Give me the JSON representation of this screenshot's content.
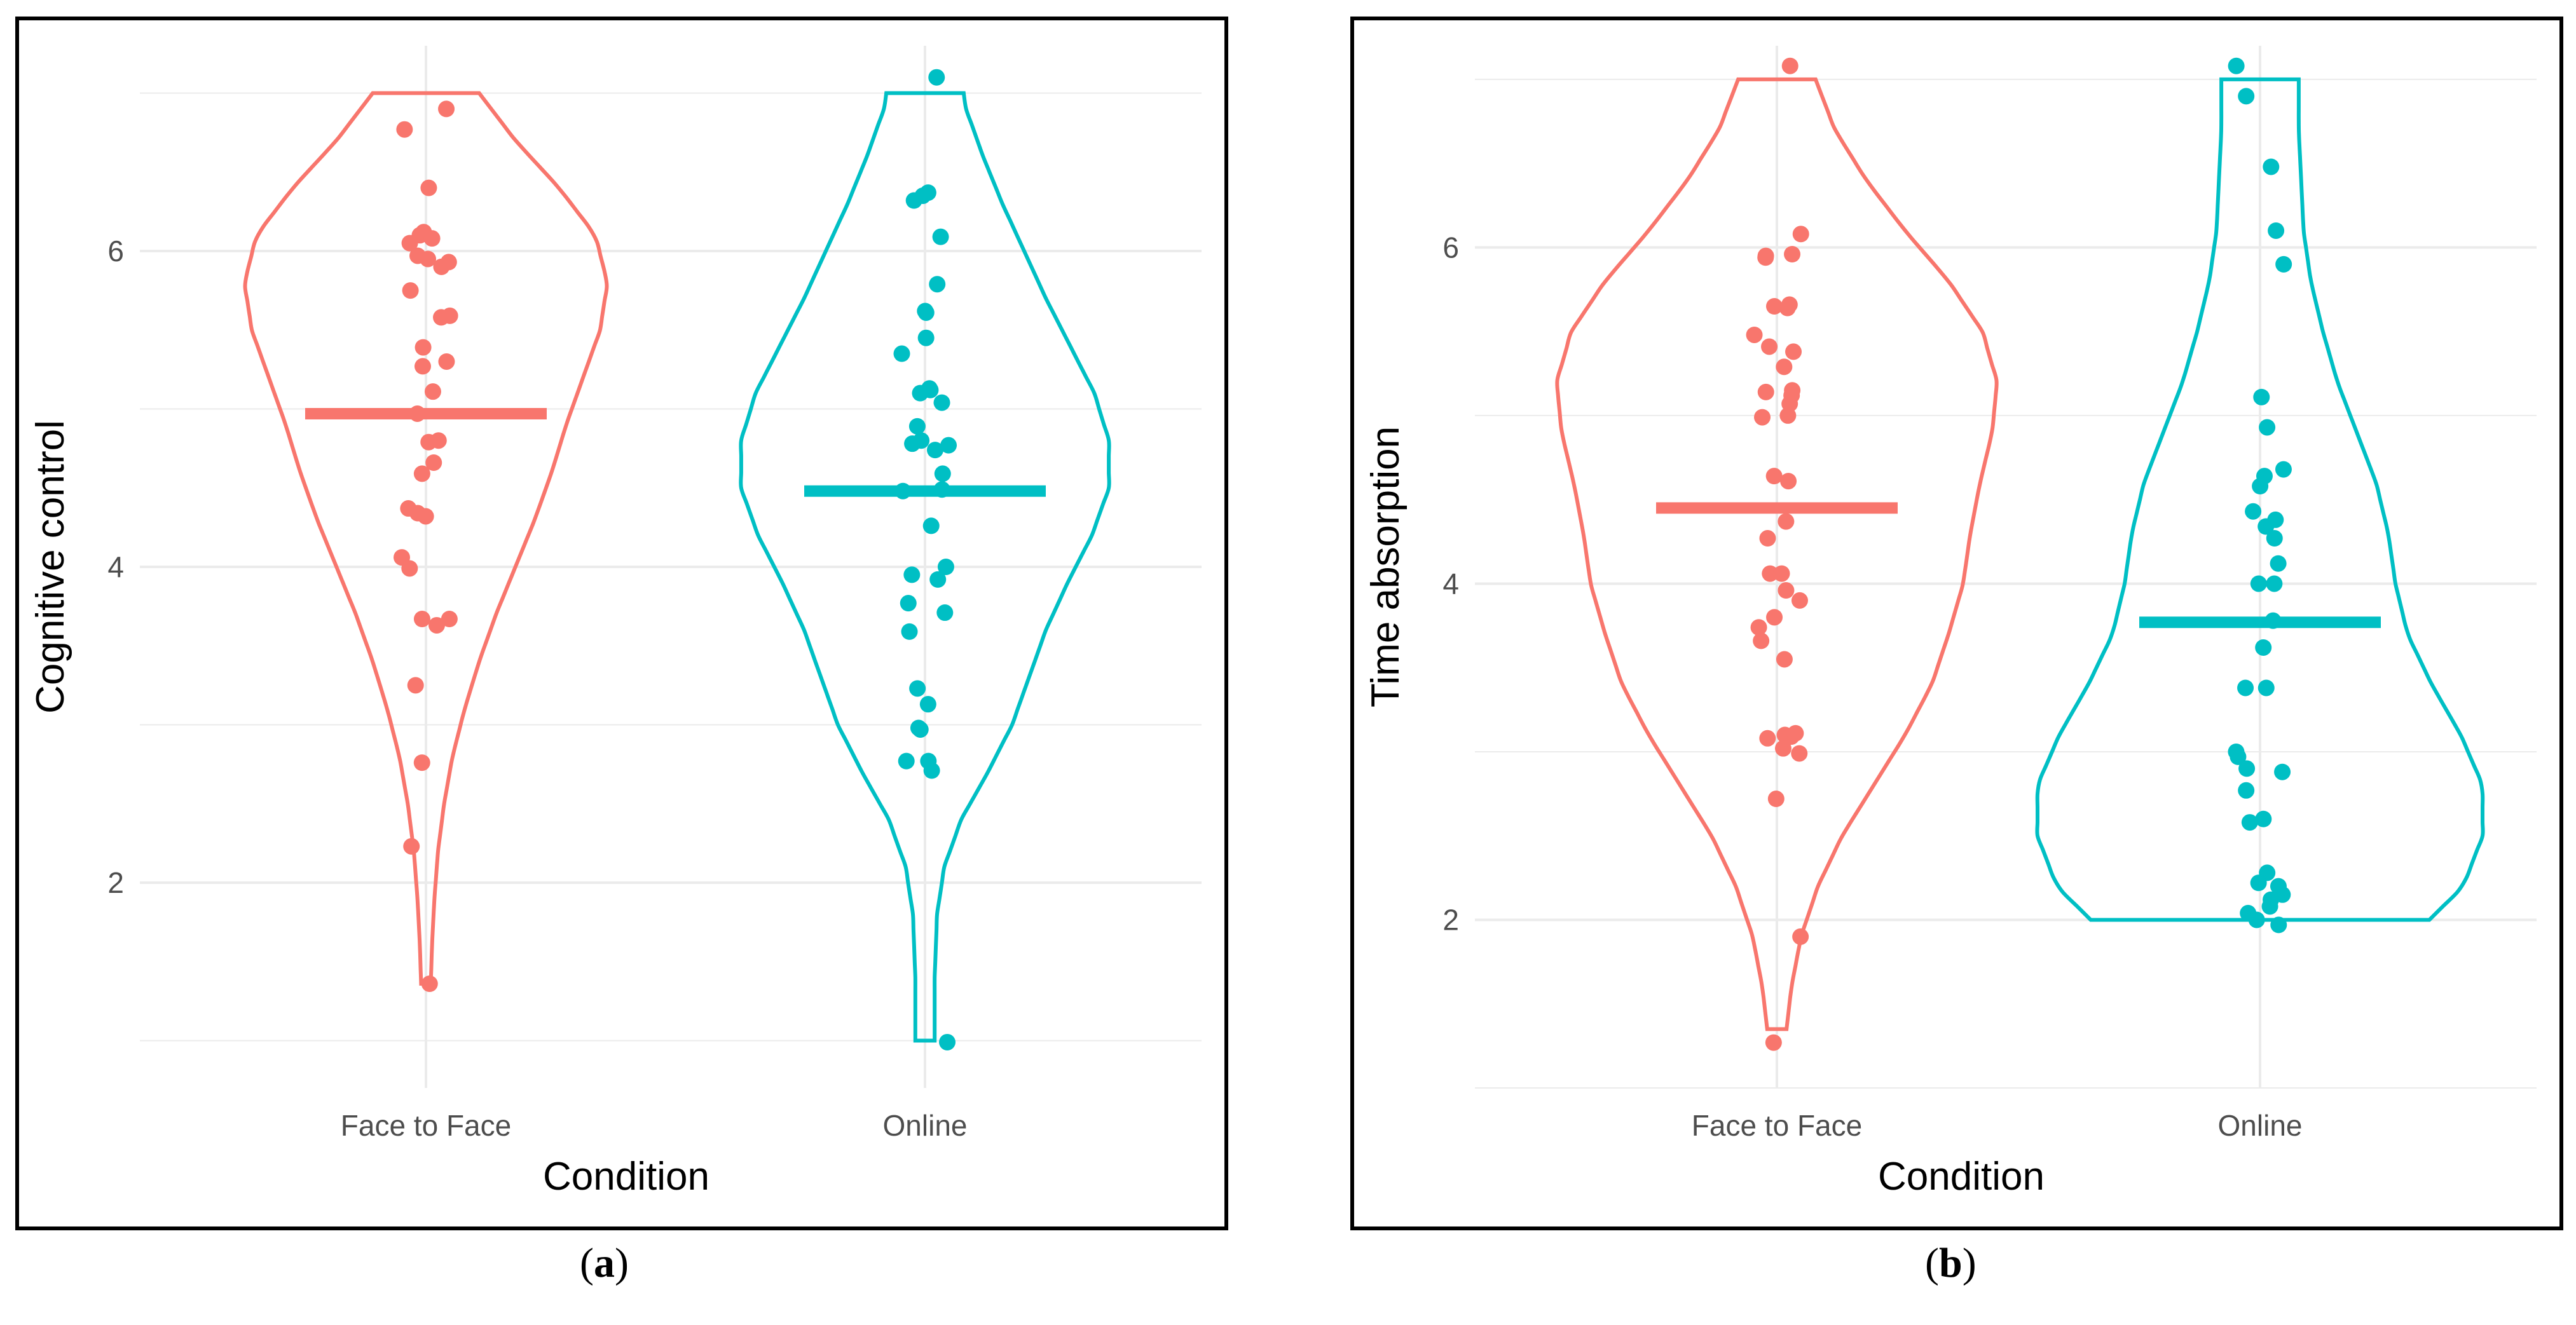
{
  "colors": {
    "face_to_face": "#F8766D",
    "online": "#00BFC4",
    "grid": "#EBEBEB"
  },
  "chart_data": [
    {
      "panel": "a",
      "type": "violin",
      "title": "",
      "xlabel": "Condition",
      "ylabel": "Cognitive control",
      "categories": [
        "Face to Face",
        "Online"
      ],
      "ylim": [
        0.7,
        7.3
      ],
      "yticks": [
        2,
        4,
        6
      ],
      "grid": true,
      "series": [
        {
          "name": "Face to Face",
          "mean": 4.97,
          "min": 1.36,
          "max": 7.0,
          "density": [
            [
              1.36,
              0.02
            ],
            [
              1.6,
              0.025
            ],
            [
              1.9,
              0.035
            ],
            [
              2.2,
              0.05
            ],
            [
              2.5,
              0.075
            ],
            [
              2.8,
              0.11
            ],
            [
              3.1,
              0.16
            ],
            [
              3.4,
              0.22
            ],
            [
              3.7,
              0.29
            ],
            [
              4.0,
              0.37
            ],
            [
              4.3,
              0.45
            ],
            [
              4.6,
              0.52
            ],
            [
              4.9,
              0.58
            ],
            [
              5.2,
              0.65
            ],
            [
              5.5,
              0.72
            ],
            [
              5.8,
              0.75
            ],
            [
              6.1,
              0.7
            ],
            [
              6.4,
              0.55
            ],
            [
              6.7,
              0.37
            ],
            [
              7.0,
              0.22
            ]
          ],
          "points": [
            6.9,
            6.77,
            6.4,
            6.1,
            6.12,
            6.08,
            6.05,
            5.97,
            5.95,
            5.93,
            5.9,
            5.75,
            5.59,
            5.58,
            5.39,
            5.3,
            5.27,
            5.11,
            4.97,
            4.8,
            4.79,
            4.66,
            4.59,
            4.37,
            4.34,
            4.32,
            4.06,
            3.99,
            3.67,
            3.67,
            3.63,
            3.25,
            2.76,
            2.23,
            1.36
          ]
        },
        {
          "name": "Online",
          "mean": 4.48,
          "min": 1.0,
          "max": 7.0,
          "density": [
            [
              1.0,
              0.04
            ],
            [
              1.4,
              0.04
            ],
            [
              1.8,
              0.05
            ],
            [
              2.1,
              0.08
            ],
            [
              2.4,
              0.15
            ],
            [
              2.7,
              0.26
            ],
            [
              3.0,
              0.36
            ],
            [
              3.3,
              0.43
            ],
            [
              3.6,
              0.5
            ],
            [
              3.9,
              0.59
            ],
            [
              4.2,
              0.69
            ],
            [
              4.5,
              0.76
            ],
            [
              4.8,
              0.76
            ],
            [
              5.1,
              0.7
            ],
            [
              5.4,
              0.6
            ],
            [
              5.7,
              0.5
            ],
            [
              6.0,
              0.41
            ],
            [
              6.3,
              0.32
            ],
            [
              6.6,
              0.24
            ],
            [
              6.9,
              0.17
            ],
            [
              7.0,
              0.16
            ]
          ],
          "points": [
            7.1,
            6.37,
            6.35,
            6.32,
            6.09,
            5.79,
            5.62,
            5.61,
            5.45,
            5.35,
            5.13,
            5.12,
            5.1,
            5.04,
            4.89,
            4.8,
            4.78,
            4.77,
            4.74,
            4.59,
            4.49,
            4.48,
            4.26,
            4.0,
            3.95,
            3.92,
            3.77,
            3.71,
            3.59,
            3.23,
            3.13,
            2.98,
            2.97,
            2.77,
            2.77,
            2.71,
            0.99
          ]
        }
      ]
    },
    {
      "panel": "b",
      "type": "violin",
      "title": "",
      "xlabel": "Condition",
      "ylabel": "Time absorption",
      "categories": [
        "Face to Face",
        "Online"
      ],
      "ylim": [
        1.0,
        7.2
      ],
      "yticks": [
        2,
        4,
        6
      ],
      "grid": true,
      "series": [
        {
          "name": "Face to Face",
          "mean": 4.45,
          "min": 1.35,
          "max": 7.0,
          "density": [
            [
              1.35,
              0.04
            ],
            [
              1.6,
              0.06
            ],
            [
              1.9,
              0.1
            ],
            [
              2.2,
              0.17
            ],
            [
              2.5,
              0.27
            ],
            [
              2.8,
              0.4
            ],
            [
              3.1,
              0.53
            ],
            [
              3.4,
              0.64
            ],
            [
              3.7,
              0.71
            ],
            [
              4.0,
              0.77
            ],
            [
              4.3,
              0.8
            ],
            [
              4.6,
              0.84
            ],
            [
              4.9,
              0.89
            ],
            [
              5.2,
              0.91
            ],
            [
              5.5,
              0.85
            ],
            [
              5.8,
              0.71
            ],
            [
              6.1,
              0.53
            ],
            [
              6.4,
              0.37
            ],
            [
              6.7,
              0.24
            ],
            [
              7.0,
              0.16
            ]
          ],
          "points": [
            7.08,
            6.08,
            5.96,
            5.95,
            5.94,
            5.66,
            5.65,
            5.64,
            5.48,
            5.41,
            5.38,
            5.29,
            5.15,
            5.14,
            5.12,
            5.07,
            5.0,
            4.99,
            4.64,
            4.61,
            4.37,
            4.27,
            4.06,
            4.06,
            3.96,
            3.9,
            3.8,
            3.74,
            3.66,
            3.55,
            3.11,
            3.1,
            3.09,
            3.08,
            3.02,
            2.99,
            2.72,
            1.9,
            1.27
          ]
        },
        {
          "name": "Online",
          "mean": 3.77,
          "min": 2.0,
          "max": 7.0,
          "density": [
            [
              2.0,
              0.7
            ],
            [
              2.2,
              0.84
            ],
            [
              2.5,
              0.92
            ],
            [
              2.8,
              0.92
            ],
            [
              3.1,
              0.83
            ],
            [
              3.4,
              0.71
            ],
            [
              3.7,
              0.61
            ],
            [
              4.0,
              0.56
            ],
            [
              4.3,
              0.53
            ],
            [
              4.6,
              0.48
            ],
            [
              4.9,
              0.4
            ],
            [
              5.2,
              0.32
            ],
            [
              5.5,
              0.26
            ],
            [
              5.8,
              0.21
            ],
            [
              6.1,
              0.18
            ],
            [
              6.4,
              0.17
            ],
            [
              6.7,
              0.16
            ],
            [
              7.0,
              0.16
            ]
          ],
          "points": [
            7.08,
            6.9,
            6.48,
            6.1,
            5.9,
            5.11,
            4.93,
            4.68,
            4.64,
            4.58,
            4.43,
            4.38,
            4.34,
            4.27,
            4.12,
            4.0,
            4.0,
            3.78,
            3.62,
            3.38,
            3.38,
            3.0,
            2.97,
            2.9,
            2.88,
            2.77,
            2.6,
            2.58,
            2.28,
            2.22,
            2.2,
            2.15,
            2.12,
            2.08,
            2.04,
            2.0,
            1.97
          ]
        }
      ]
    }
  ],
  "captions": [
    "(a)",
    "(b)"
  ]
}
